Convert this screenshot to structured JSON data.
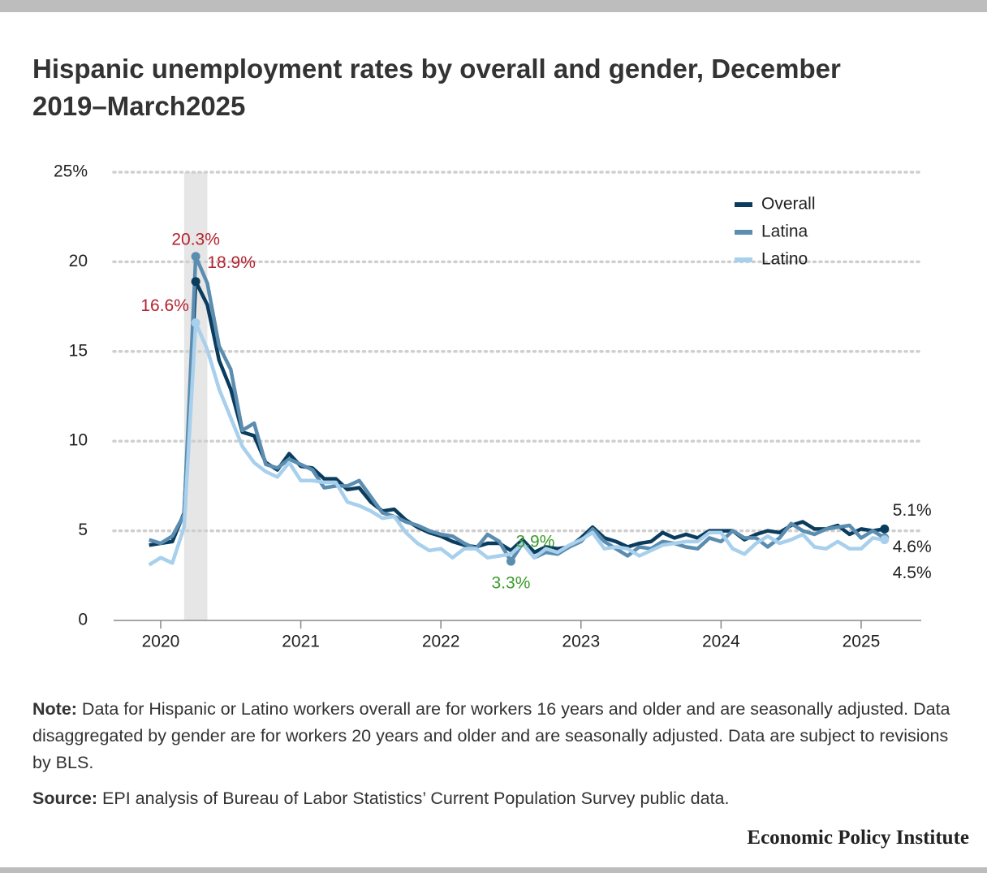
{
  "chart_data": {
    "type": "line",
    "title": "Hispanic unemployment rates by overall and gender, December 2019–March2025",
    "x": [
      2019.917,
      2020,
      2020.083,
      2020.167,
      2020.25,
      2020.333,
      2020.417,
      2020.5,
      2020.583,
      2020.667,
      2020.75,
      2020.833,
      2020.917,
      2021,
      2021.083,
      2021.167,
      2021.25,
      2021.333,
      2021.417,
      2021.5,
      2021.583,
      2021.667,
      2021.75,
      2021.833,
      2021.917,
      2022,
      2022.083,
      2022.167,
      2022.25,
      2022.333,
      2022.417,
      2022.5,
      2022.583,
      2022.667,
      2022.75,
      2022.833,
      2022.917,
      2023,
      2023.083,
      2023.167,
      2023.25,
      2023.333,
      2023.417,
      2023.5,
      2023.583,
      2023.667,
      2023.75,
      2023.833,
      2023.917,
      2024,
      2024.083,
      2024.167,
      2024.25,
      2024.333,
      2024.417,
      2024.5,
      2024.583,
      2024.667,
      2024.75,
      2024.833,
      2024.917,
      2025,
      2025.083,
      2025.167
    ],
    "xlim": [
      2019.664,
      2025.429
    ],
    "xticks": [
      2020,
      2021,
      2022,
      2023,
      2024,
      2025
    ],
    "ylim": [
      0,
      25
    ],
    "yticks": [
      0,
      5,
      10,
      15,
      20,
      {
        "value": 25,
        "label": "25%"
      }
    ],
    "grid": true,
    "legend": "upper right",
    "shaded_region": [
      2020.167,
      2020.333
    ],
    "shaded_color": "#e6e6e6",
    "series": [
      {
        "name": "Overall",
        "color": "#0b3c5d",
        "values": [
          4.2,
          4.3,
          4.4,
          6.0,
          18.9,
          17.6,
          14.5,
          12.9,
          10.5,
          10.3,
          8.8,
          8.4,
          9.3,
          8.6,
          8.5,
          7.9,
          7.9,
          7.3,
          7.4,
          6.6,
          6.1,
          6.2,
          5.6,
          5.2,
          4.9,
          4.7,
          4.4,
          4.2,
          4.1,
          4.3,
          4.3,
          3.9,
          4.5,
          3.8,
          4.1,
          4.0,
          4.1,
          4.6,
          5.2,
          4.6,
          4.4,
          4.1,
          4.3,
          4.4,
          4.9,
          4.6,
          4.8,
          4.6,
          5.0,
          5.0,
          5.0,
          4.5,
          4.8,
          5.0,
          4.9,
          5.3,
          5.5,
          5.1,
          5.1,
          5.3,
          4.8,
          5.1,
          5.0,
          5.1
        ],
        "value_labels": [
          null,
          null,
          null,
          null,
          "18.9%",
          null,
          null,
          null,
          null,
          null,
          null,
          null,
          null,
          null,
          null,
          null,
          null,
          null,
          null,
          null,
          null,
          null,
          null,
          null,
          null,
          null,
          null,
          null,
          null,
          null,
          null,
          "3.9%",
          null,
          null,
          null,
          null,
          null,
          null,
          null,
          null,
          null,
          null,
          null,
          null,
          null,
          null,
          null,
          null,
          null,
          null,
          null,
          null,
          null,
          null,
          null,
          null,
          null,
          null,
          null,
          null,
          null,
          null,
          null,
          "5.1%"
        ],
        "value_label_colors": [
          null,
          null,
          null,
          null,
          "#b3222f",
          null,
          null,
          null,
          null,
          null,
          null,
          null,
          null,
          null,
          null,
          null,
          null,
          null,
          null,
          null,
          null,
          null,
          null,
          null,
          null,
          null,
          null,
          null,
          null,
          null,
          null,
          "#3a9a2a",
          null,
          null,
          null,
          null,
          null,
          null,
          null,
          null,
          null,
          null,
          null,
          null,
          null,
          null,
          null,
          null,
          null,
          null,
          null,
          null,
          null,
          null,
          null,
          null,
          null,
          null,
          null,
          null,
          null,
          null,
          null,
          "#222222"
        ]
      },
      {
        "name": "Latina",
        "color": "#5b8db0",
        "values": [
          4.5,
          4.3,
          4.7,
          5.9,
          20.3,
          18.8,
          15.3,
          14.0,
          10.6,
          11.0,
          8.7,
          8.5,
          9.0,
          8.7,
          8.4,
          7.4,
          7.5,
          7.5,
          7.8,
          6.9,
          6.0,
          5.8,
          5.5,
          5.3,
          5.0,
          4.8,
          4.7,
          4.3,
          4.0,
          4.8,
          4.4,
          3.3,
          4.3,
          3.5,
          3.8,
          3.7,
          4.1,
          4.4,
          5.1,
          4.4,
          4.0,
          3.6,
          4.1,
          4.0,
          4.4,
          4.3,
          4.1,
          4.0,
          4.6,
          4.4,
          5.0,
          4.6,
          4.6,
          4.1,
          4.6,
          5.4,
          5.0,
          4.8,
          5.1,
          5.2,
          5.3,
          4.6,
          5.0,
          4.6
        ],
        "value_labels": [
          null,
          null,
          null,
          null,
          "20.3%",
          null,
          null,
          null,
          null,
          null,
          null,
          null,
          null,
          null,
          null,
          null,
          null,
          null,
          null,
          null,
          null,
          null,
          null,
          null,
          null,
          null,
          null,
          null,
          null,
          null,
          null,
          "3.3%",
          null,
          null,
          null,
          null,
          null,
          null,
          null,
          null,
          null,
          null,
          null,
          null,
          null,
          null,
          null,
          null,
          null,
          null,
          null,
          null,
          null,
          null,
          null,
          null,
          null,
          null,
          null,
          null,
          null,
          null,
          null,
          "4.6%"
        ],
        "value_label_colors": [
          null,
          null,
          null,
          null,
          "#b3222f",
          null,
          null,
          null,
          null,
          null,
          null,
          null,
          null,
          null,
          null,
          null,
          null,
          null,
          null,
          null,
          null,
          null,
          null,
          null,
          null,
          null,
          null,
          null,
          null,
          null,
          null,
          "#3a9a2a",
          null,
          null,
          null,
          null,
          null,
          null,
          null,
          null,
          null,
          null,
          null,
          null,
          null,
          null,
          null,
          null,
          null,
          null,
          null,
          null,
          null,
          null,
          null,
          null,
          null,
          null,
          null,
          null,
          null,
          null,
          null,
          "#222222"
        ]
      },
      {
        "name": "Latino",
        "color": "#a8d0ec",
        "values": [
          3.1,
          3.5,
          3.2,
          5.2,
          16.6,
          15.1,
          12.9,
          11.3,
          9.7,
          8.8,
          8.3,
          8.0,
          8.8,
          7.8,
          7.8,
          7.7,
          7.7,
          6.6,
          6.4,
          6.1,
          5.7,
          5.8,
          4.9,
          4.3,
          3.9,
          4.0,
          3.5,
          4.0,
          4.0,
          3.5,
          3.6,
          3.7,
          4.3,
          3.5,
          4.0,
          3.8,
          4.2,
          4.5,
          4.9,
          4.0,
          4.1,
          4.0,
          3.6,
          3.9,
          4.2,
          4.3,
          4.4,
          4.4,
          4.9,
          4.9,
          4.0,
          3.7,
          4.3,
          4.7,
          4.3,
          4.5,
          4.8,
          4.1,
          4.0,
          4.4,
          4.0,
          4.0,
          4.6,
          4.5
        ],
        "value_labels": [
          null,
          null,
          null,
          null,
          "16.6%",
          null,
          null,
          null,
          null,
          null,
          null,
          null,
          null,
          null,
          null,
          null,
          null,
          null,
          null,
          null,
          null,
          null,
          null,
          null,
          null,
          null,
          null,
          null,
          null,
          null,
          null,
          null,
          null,
          null,
          null,
          null,
          null,
          null,
          null,
          null,
          null,
          null,
          null,
          null,
          null,
          null,
          null,
          null,
          null,
          null,
          null,
          null,
          null,
          null,
          null,
          null,
          null,
          null,
          null,
          null,
          null,
          null,
          null,
          "4.5%"
        ],
        "value_label_colors": [
          null,
          null,
          null,
          null,
          "#b3222f",
          null,
          null,
          null,
          null,
          null,
          null,
          null,
          null,
          null,
          null,
          null,
          null,
          null,
          null,
          null,
          null,
          null,
          null,
          null,
          null,
          null,
          null,
          null,
          null,
          null,
          null,
          null,
          null,
          null,
          null,
          null,
          null,
          null,
          null,
          null,
          null,
          null,
          null,
          null,
          null,
          null,
          null,
          null,
          null,
          null,
          null,
          null,
          null,
          null,
          null,
          null,
          null,
          null,
          null,
          null,
          null,
          null,
          null,
          "#222222"
        ]
      }
    ]
  },
  "note": {
    "label": "Note:",
    "text": "Data for Hispanic or Latino workers overall are for workers 16 years and older and are seasonally adjusted. Data disaggregated by gender are for workers 20 years and older and are seasonally adjusted. Data are subject to revisions by BLS."
  },
  "source": {
    "label": "Source:",
    "text": "EPI analysis of Bureau of Labor Statistics’ Current Population Survey public data."
  },
  "footer": "Economic Policy Institute"
}
